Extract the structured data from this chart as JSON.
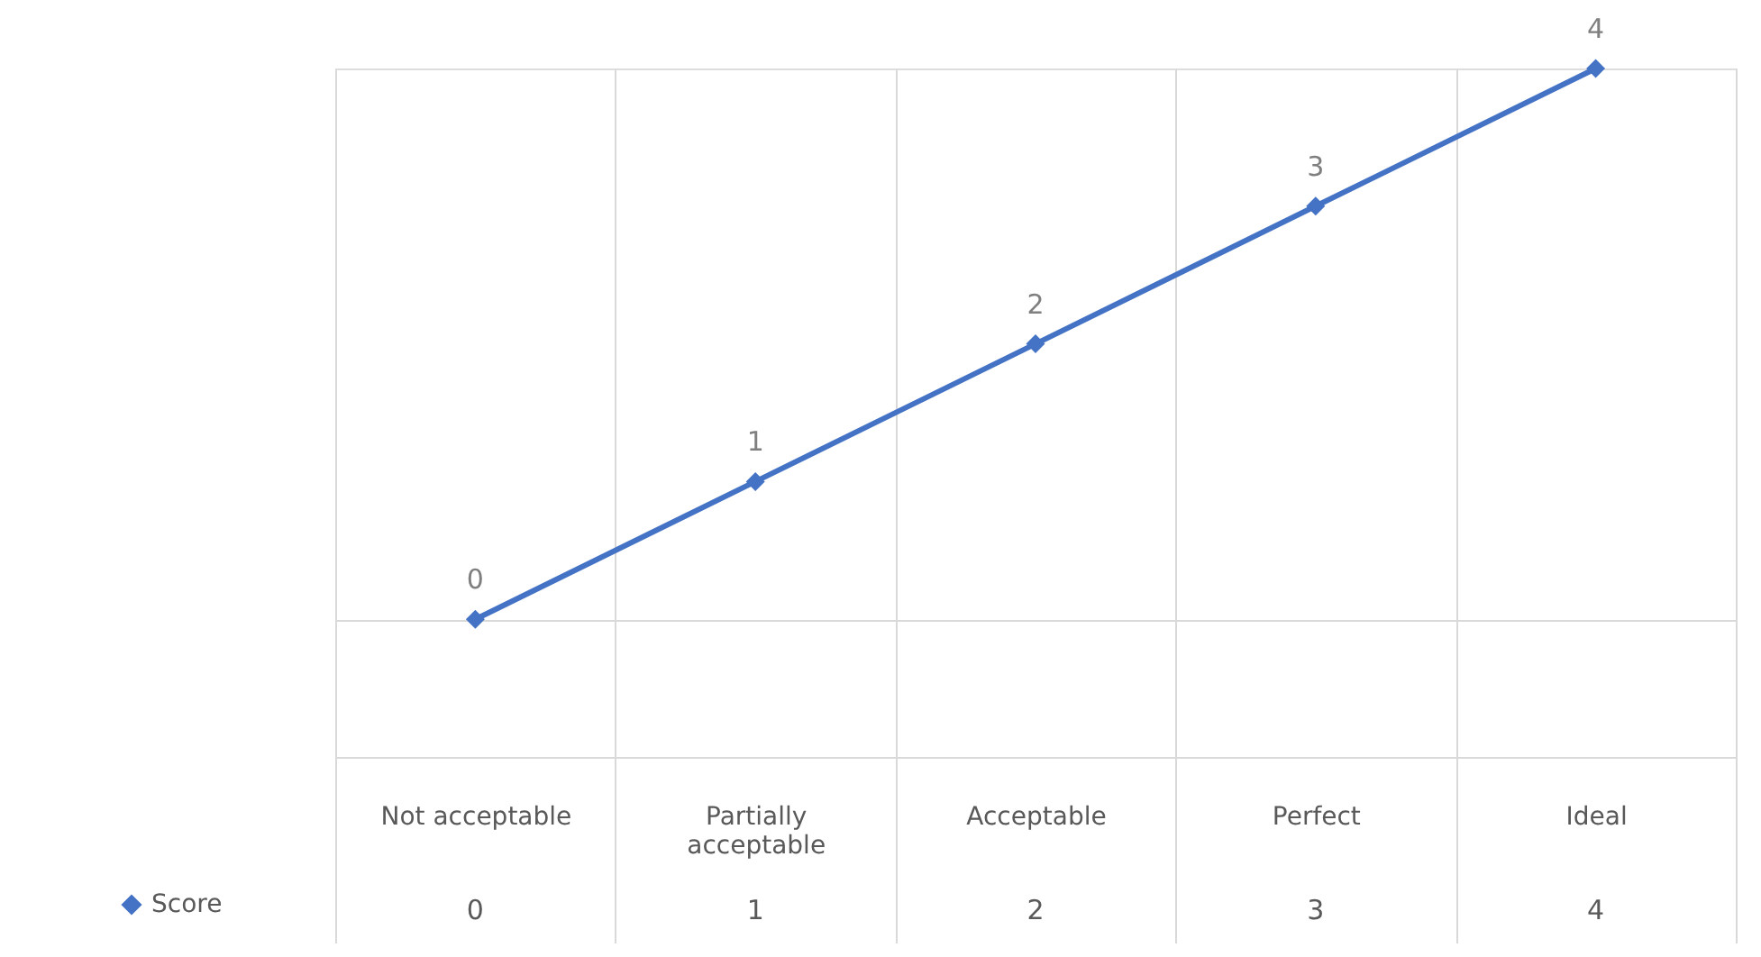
{
  "chart_data": {
    "type": "line",
    "categories": [
      "Not acceptable",
      "Partially acceptable",
      "Acceptable",
      "Perfect",
      "Ideal"
    ],
    "series": [
      {
        "name": "Score",
        "color": "#4472c4",
        "values": [
          0,
          1,
          2,
          3,
          4
        ]
      }
    ],
    "ylim": [
      -1,
      4
    ],
    "yticks": [
      {
        "value": -1,
        "label": null
      },
      {
        "value": 0,
        "label": null
      }
    ],
    "tick_labels": "x",
    "grid": true,
    "legend": "bottom left",
    "marker": "diamond",
    "line_style": "solid",
    "data_labels": true,
    "annotations": [
      "0",
      "1",
      "2",
      "3",
      "4"
    ]
  }
}
